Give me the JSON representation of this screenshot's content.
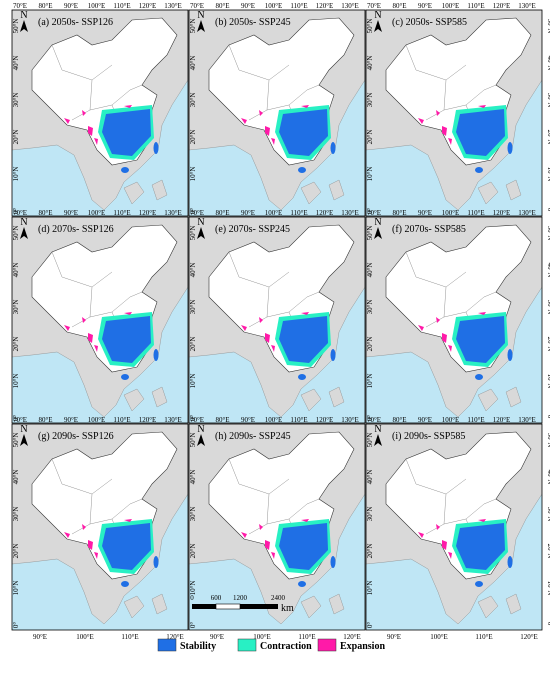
{
  "panels": [
    {
      "label": "(a) 2050s- SSP126"
    },
    {
      "label": "(b) 2050s- SSP245"
    },
    {
      "label": "(c) 2050s- SSP585"
    },
    {
      "label": "(d) 2070s- SSP126"
    },
    {
      "label": "(e) 2070s- SSP245"
    },
    {
      "label": "(f) 2070s- SSP585"
    },
    {
      "label": "(g) 2090s- SSP126"
    },
    {
      "label": "(h) 2090s- SSP245"
    },
    {
      "label": "(i) 2090s- SSP585"
    }
  ],
  "north": "N",
  "top_ticks": [
    "70°E",
    "80°E",
    "90°E",
    "100°E",
    "110°E",
    "120°E",
    "130°E"
  ],
  "lat_ticks": [
    "50°N",
    "40°N",
    "30°N",
    "20°N",
    "10°N",
    "0°"
  ],
  "bottom_ticks": [
    "90°E",
    "100°E",
    "110°E",
    "120°E"
  ],
  "scale_bar": {
    "labels": [
      "0",
      "600",
      "1200",
      "2400"
    ],
    "unit": "km"
  },
  "legend": [
    {
      "name": "Stability",
      "color": "#1f6fe5"
    },
    {
      "name": "Contraction",
      "color": "#28f0c4"
    },
    {
      "name": "Expansion",
      "color": "#ff1aa8"
    }
  ]
}
